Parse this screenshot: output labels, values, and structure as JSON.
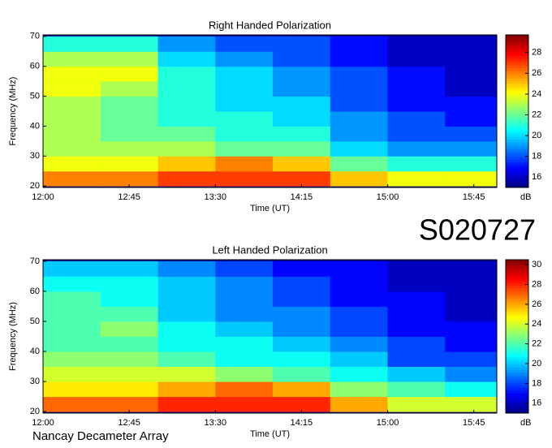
{
  "page": {
    "code": "S020727",
    "footer": "Nancay Decameter Array"
  },
  "chart_data": [
    {
      "type": "heatmap",
      "title": "Right Handed Polarization",
      "x_label": "Time (UT)",
      "y_label": "Frequency (MHz)",
      "colorbar_label": "dB",
      "colormap": "jet",
      "xlim": [
        0,
        237
      ],
      "xticks": [
        {
          "value": 0,
          "label": "12:00"
        },
        {
          "value": 45,
          "label": "12:45"
        },
        {
          "value": 90,
          "label": "13:30"
        },
        {
          "value": 135,
          "label": "14:15"
        },
        {
          "value": 180,
          "label": "15:00"
        },
        {
          "value": 225,
          "label": "15:45"
        }
      ],
      "ylim": [
        19.5,
        70.5
      ],
      "yticks": [
        20,
        30,
        40,
        50,
        60,
        70
      ],
      "clim": [
        15,
        29.7
      ],
      "cticks": [
        16,
        18,
        20,
        22,
        24,
        26,
        28
      ],
      "xbins": [
        0,
        30,
        60,
        90,
        120,
        150,
        180,
        210,
        237
      ],
      "ybins": [
        20,
        25,
        30,
        35,
        40,
        45,
        50,
        55,
        60,
        65,
        70
      ],
      "z": [
        [
          26,
          26,
          27,
          27,
          27,
          25,
          24,
          24
        ],
        [
          24,
          24,
          25,
          26,
          25,
          22,
          21,
          21
        ],
        [
          23,
          23,
          23,
          22,
          22,
          20,
          19,
          19
        ],
        [
          23,
          22,
          22,
          21,
          21,
          19,
          18,
          18
        ],
        [
          23,
          22,
          21,
          21,
          20,
          19,
          18,
          17
        ],
        [
          23,
          22,
          21,
          20,
          20,
          18,
          17,
          17
        ],
        [
          24,
          23,
          21,
          20,
          19,
          18,
          17,
          16
        ],
        [
          24,
          24,
          21,
          20,
          19,
          18,
          17,
          16
        ],
        [
          23,
          23,
          20,
          19,
          18,
          17,
          16,
          16
        ],
        [
          21,
          21,
          19,
          18,
          18,
          17,
          16,
          16
        ]
      ]
    },
    {
      "type": "heatmap",
      "title": "Left Handed Polarization",
      "x_label": "Time (UT)",
      "y_label": "Frequency (MHz)",
      "colorbar_label": "dB",
      "colormap": "jet",
      "xlim": [
        0,
        237
      ],
      "xticks": [
        {
          "value": 0,
          "label": "12:00"
        },
        {
          "value": 45,
          "label": "12:45"
        },
        {
          "value": 90,
          "label": "13:30"
        },
        {
          "value": 135,
          "label": "14:15"
        },
        {
          "value": 180,
          "label": "15:00"
        },
        {
          "value": 225,
          "label": "15:45"
        }
      ],
      "ylim": [
        19.5,
        70.5
      ],
      "yticks": [
        20,
        30,
        40,
        50,
        60,
        70
      ],
      "clim": [
        15,
        30.5
      ],
      "cticks": [
        16,
        18,
        20,
        22,
        24,
        26,
        28,
        30
      ],
      "xbins": [
        0,
        30,
        60,
        90,
        120,
        150,
        180,
        210,
        237
      ],
      "ybins": [
        20,
        25,
        30,
        35,
        40,
        45,
        50,
        55,
        60,
        65,
        70
      ],
      "z": [
        [
          27,
          27,
          28,
          28,
          28,
          26,
          24,
          24
        ],
        [
          25,
          25,
          26,
          27,
          26,
          23,
          22,
          21
        ],
        [
          24,
          24,
          24,
          23,
          22,
          21,
          20,
          19
        ],
        [
          23,
          23,
          22,
          21,
          21,
          20,
          18,
          18
        ],
        [
          22,
          22,
          21,
          21,
          20,
          19,
          18,
          17
        ],
        [
          22,
          23,
          21,
          20,
          19,
          18,
          17,
          17
        ],
        [
          22,
          22,
          20,
          19,
          19,
          18,
          17,
          16
        ],
        [
          22,
          21,
          20,
          19,
          18,
          17,
          17,
          16
        ],
        [
          21,
          21,
          20,
          19,
          18,
          17,
          16,
          16
        ],
        [
          20,
          20,
          19,
          18,
          17,
          17,
          16,
          16
        ]
      ]
    }
  ]
}
